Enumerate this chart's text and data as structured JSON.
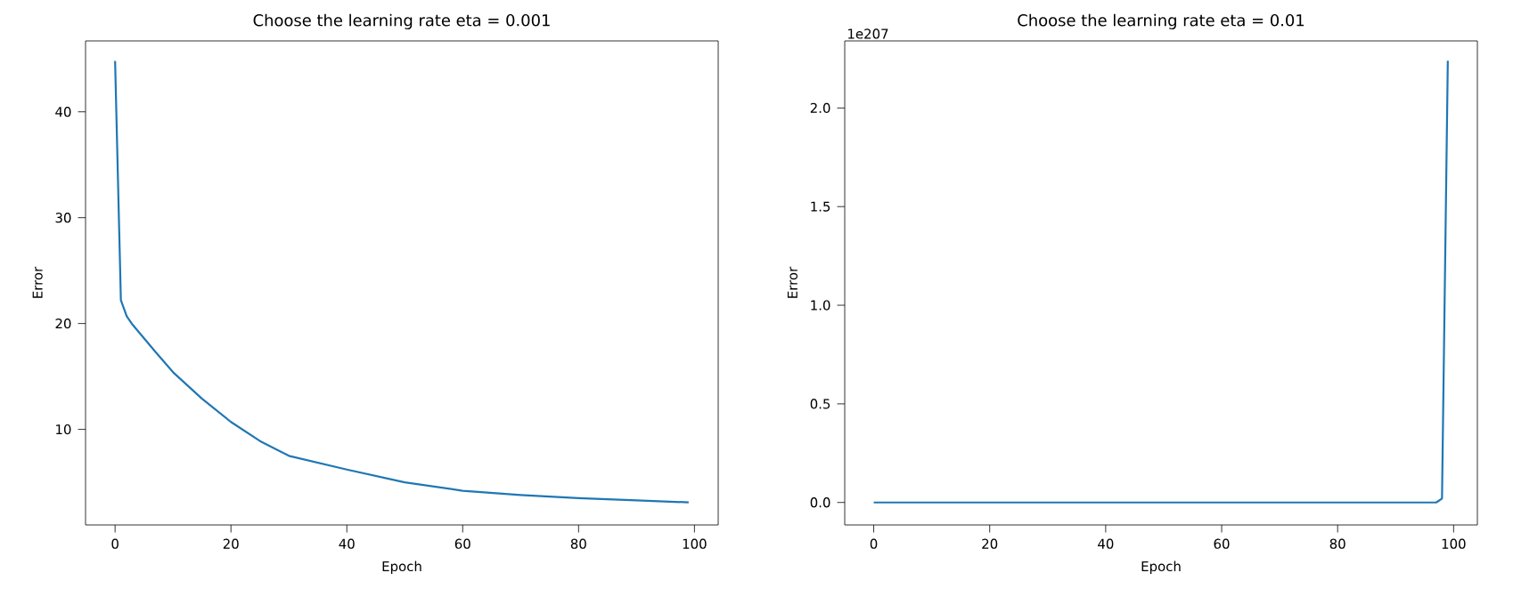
{
  "chart_data": [
    {
      "type": "line",
      "title": "Choose the learning rate eta = 0.001",
      "xlabel": "Epoch",
      "ylabel": "Error",
      "xlim": [
        -5.1,
        104.1
      ],
      "ylim": [
        0.97,
        46.7
      ],
      "xticks": [
        0,
        20,
        40,
        60,
        80,
        100
      ],
      "yticks": [
        10,
        20,
        30,
        40
      ],
      "series": [
        {
          "color": "#1f77b4",
          "x": [
            0,
            1,
            2,
            3,
            5,
            7,
            10,
            15,
            20,
            25,
            30,
            40,
            50,
            60,
            70,
            80,
            90,
            99
          ],
          "values": [
            44.8,
            22.2,
            20.7,
            19.9,
            18.6,
            17.3,
            15.4,
            12.9,
            10.7,
            8.9,
            7.5,
            6.2,
            5.0,
            4.2,
            3.8,
            3.5,
            3.3,
            3.1
          ]
        }
      ]
    },
    {
      "type": "line",
      "title": "Choose the learning rate eta = 0.01",
      "xlabel": "Epoch",
      "ylabel": "Error",
      "annotations": [
        "1e207"
      ],
      "xlim": [
        -5.0,
        104.1
      ],
      "ylim": [
        -0.114,
        2.34
      ],
      "xticks": [
        0,
        20,
        40,
        60,
        80,
        100
      ],
      "yticks": [
        {
          "value": 0,
          "label": "0.0"
        },
        {
          "value": 0.5,
          "label": "0.5"
        },
        {
          "value": 1,
          "label": "1.0"
        },
        {
          "value": 1.5,
          "label": "1.5"
        },
        {
          "value": 2,
          "label": "2.0"
        }
      ],
      "series": [
        {
          "color": "#1f77b4",
          "x": [
            0,
            96,
            97,
            98,
            99
          ],
          "values": [
            0,
            0,
            0.0,
            0.02,
            2.24
          ]
        }
      ]
    }
  ]
}
